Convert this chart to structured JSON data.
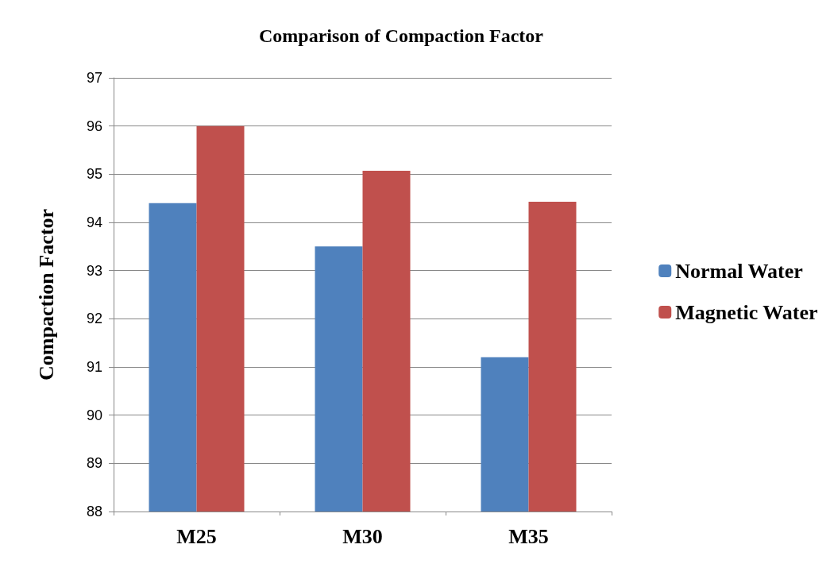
{
  "chart_data": {
    "type": "bar",
    "title": "Comparison of Compaction Factor",
    "ylabel": "Compaction Factor",
    "categories": [
      "M25",
      "M30",
      "M35"
    ],
    "series": [
      {
        "name": "Normal Water",
        "color": "#4f81bd",
        "values": [
          94.4,
          93.5,
          91.2
        ]
      },
      {
        "name": "Magnetic Water",
        "color": "#c0504d",
        "values": [
          96.0,
          95.07,
          94.43
        ]
      }
    ],
    "ylim": [
      88,
      97
    ],
    "yticks": [
      88,
      89,
      90,
      91,
      92,
      93,
      94,
      95,
      96,
      97
    ],
    "grid": "y",
    "legend": "right"
  }
}
